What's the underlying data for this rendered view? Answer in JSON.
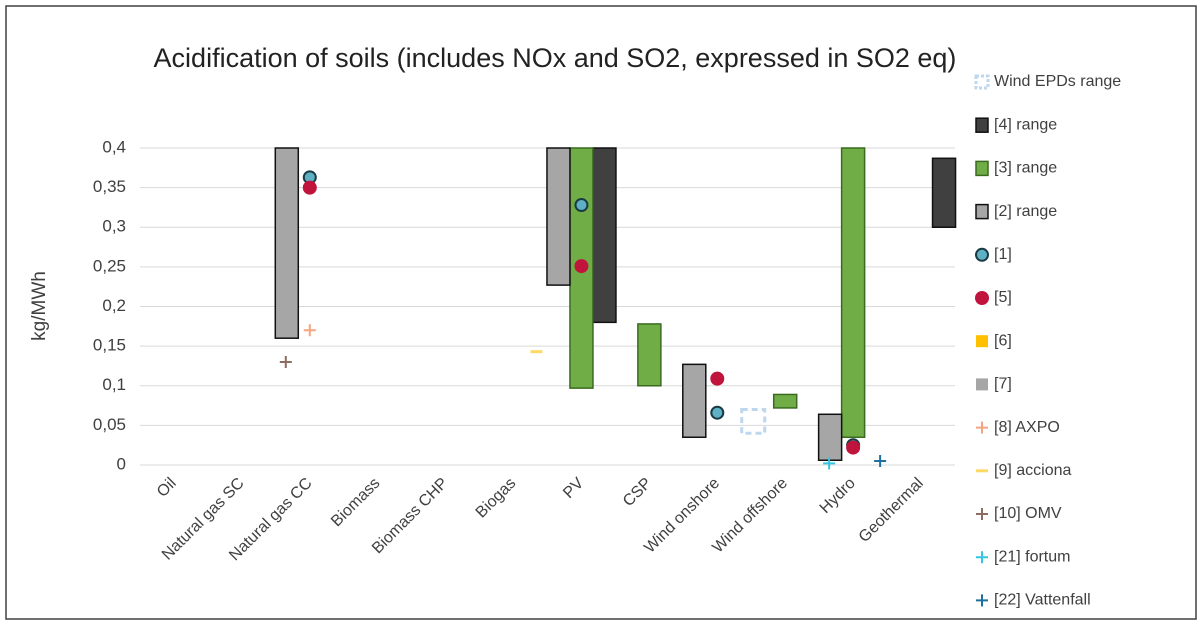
{
  "chart_data": {
    "type": "range",
    "title": "Acidification of soils (includes NOx and SO2, expressed in SO2 eq)",
    "y_label": "kg/MWh",
    "categories": [
      "Oil",
      "Natural gas SC",
      "Natural gas  CC",
      "Biomass",
      "Biomass CHP",
      "Biogas",
      "PV",
      "CSP",
      "Wind onshore",
      "Wind offshore",
      "Hydro",
      "Geothermal"
    ],
    "ylim": [
      0,
      0.4
    ],
    "yticks": [
      0,
      {
        "value": 0.05,
        "label": "0,05"
      },
      {
        "value": 0.1,
        "label": "0,1"
      },
      {
        "value": 0.15,
        "label": "0,15"
      },
      {
        "value": 0.2,
        "label": "0,2"
      },
      {
        "value": 0.25,
        "label": "0,25"
      },
      {
        "value": 0.3,
        "label": "0,3"
      },
      {
        "value": 0.35,
        "label": "0,35"
      },
      {
        "value": 0.4,
        "label": "0,4"
      }
    ],
    "grid": true,
    "legend": "right",
    "series": [
      {
        "name": "Wind EPDs range",
        "color": "#bdd7ee",
        "marker": "range",
        "low": [
          null,
          null,
          null,
          null,
          null,
          null,
          null,
          null,
          null,
          0.04,
          null,
          null
        ],
        "high": [
          null,
          null,
          null,
          null,
          null,
          null,
          null,
          null,
          null,
          0.07,
          null,
          null
        ]
      },
      {
        "name": "[4] range",
        "color": "#404040",
        "marker": "range",
        "low": [
          null,
          null,
          null,
          null,
          null,
          null,
          0.18,
          0.092,
          0.037,
          0.05,
          0.013,
          0.3
        ],
        "high": [
          null,
          null,
          null,
          null,
          null,
          null,
          0.4,
          0.092,
          0.037,
          0.05,
          0.013,
          0.387
        ]
      },
      {
        "name": "[3] range",
        "color": "#70ad47",
        "marker": "range",
        "low": [
          null,
          null,
          null,
          null,
          null,
          null,
          0.097,
          0.1,
          null,
          0.072,
          0.035,
          null
        ],
        "high": [
          null,
          null,
          null,
          null,
          null,
          null,
          0.4,
          0.178,
          null,
          0.089,
          0.4,
          null
        ]
      },
      {
        "name": "[2] range",
        "color": "#a6a6a6",
        "marker": "range",
        "low": [
          null,
          null,
          0.16,
          null,
          null,
          null,
          0.227,
          null,
          0.035,
          null,
          0.006,
          null
        ],
        "high": [
          null,
          null,
          0.4,
          null,
          null,
          null,
          0.4,
          null,
          0.127,
          null,
          0.064,
          null
        ]
      },
      {
        "name": "[1]",
        "color": "#5fb0c4",
        "marker": "circle",
        "values": [
          null,
          null,
          0.363,
          null,
          null,
          null,
          0.328,
          null,
          0.066,
          null,
          0.025,
          null
        ]
      },
      {
        "name": "[5]",
        "color": "#c0143c",
        "marker": "circle",
        "values": [
          null,
          null,
          0.35,
          null,
          null,
          null,
          0.251,
          null,
          0.109,
          null,
          0.022,
          null
        ]
      },
      {
        "name": "[6]",
        "color": "#ffc000",
        "marker": "square",
        "values": [
          null,
          null,
          null,
          null,
          null,
          null,
          null,
          null,
          null,
          null,
          null,
          null
        ]
      },
      {
        "name": "[7]",
        "color": "#a6a6a6",
        "marker": "square",
        "values": [
          null,
          null,
          null,
          null,
          null,
          null,
          null,
          null,
          null,
          null,
          null,
          null
        ]
      },
      {
        "name": "[8] AXPO",
        "color": "#f4a582",
        "marker": "plus",
        "values": [
          null,
          null,
          0.17,
          null,
          null,
          null,
          null,
          null,
          null,
          null,
          null,
          null
        ]
      },
      {
        "name": "[9] acciona",
        "color": "#ffd966",
        "marker": "dash",
        "values": [
          null,
          null,
          null,
          null,
          null,
          null,
          0.143,
          null,
          null,
          null,
          null,
          null
        ]
      },
      {
        "name": "[10] OMV",
        "color": "#8c6d62",
        "marker": "plus",
        "values": [
          null,
          null,
          0.13,
          null,
          null,
          null,
          null,
          null,
          null,
          null,
          null,
          null
        ]
      },
      {
        "name": "[21] fortum",
        "color": "#33c6e0",
        "marker": "plus",
        "values": [
          null,
          null,
          null,
          null,
          null,
          null,
          null,
          null,
          null,
          null,
          0.002,
          null
        ]
      },
      {
        "name": "[22] Vattenfall",
        "color": "#1f6f9f",
        "marker": "plus",
        "values": [
          null,
          null,
          null,
          null,
          null,
          null,
          null,
          null,
          null,
          null,
          0.005,
          null
        ]
      }
    ]
  }
}
